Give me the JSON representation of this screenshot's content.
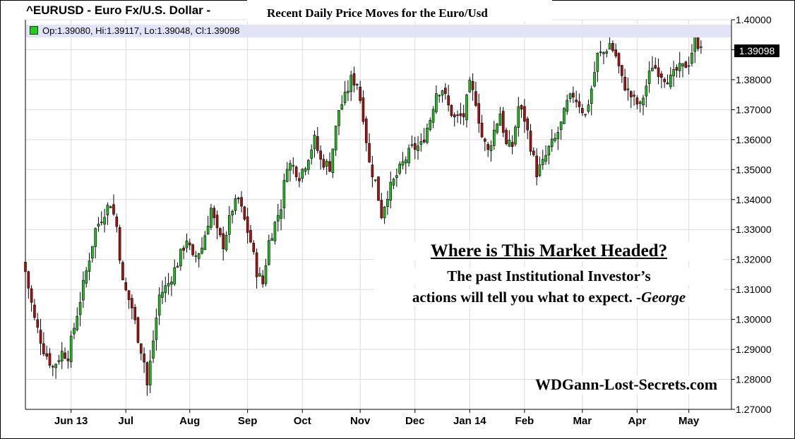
{
  "header": {
    "symbol_title": "^EURUSD - Euro Fx/U.S. Dollar -",
    "chart_title": "Recent Daily Price Moves for the Euro/Usd"
  },
  "ohlc_readout": "Op:1.39080, Hi:1.39117, Lo:1.39048, Cl:1.39098",
  "last_price": "1.39098",
  "annotation": {
    "headline": "Where is This Market Headed?",
    "line1": "The past Institutional Investor’s",
    "line2_main": "actions will tell you what to expect. ",
    "line2_sign": "-George"
  },
  "watermark": "WDGann-Lost-Secrets.com",
  "colors": {
    "up": "#22bb22",
    "down": "#aa1111",
    "grid": "#dcdcdc",
    "ohlc_band": "#e3e3f7"
  },
  "chart_data": {
    "type": "candlestick",
    "title": "Recent Daily Price Moves for the Euro/Usd",
    "ylim": [
      1.27,
      1.4
    ],
    "yticks": [
      "1.27000",
      "1.28000",
      "1.29000",
      "1.30000",
      "1.31000",
      "1.32000",
      "1.33000",
      "1.34000",
      "1.35000",
      "1.36000",
      "1.37000",
      "1.38000",
      "1.39000",
      "1.40000"
    ],
    "xlim_trading_days": [
      0,
      232
    ],
    "x_ticks": [
      {
        "label": "Jun 13",
        "day": 15
      },
      {
        "label": "Jul",
        "day": 33
      },
      {
        "label": "Aug",
        "day": 54
      },
      {
        "label": "Sep",
        "day": 73
      },
      {
        "label": "Oct",
        "day": 91
      },
      {
        "label": "Nov",
        "day": 110
      },
      {
        "label": "Dec",
        "day": 128
      },
      {
        "label": "Jan 14",
        "day": 146
      },
      {
        "label": "Feb",
        "day": 164
      },
      {
        "label": "Mar",
        "day": 183
      },
      {
        "label": "Apr",
        "day": 201
      },
      {
        "label": "May",
        "day": 218
      }
    ],
    "grid": true,
    "close_path": [
      [
        0,
        1.316
      ],
      [
        3,
        1.3
      ],
      [
        6,
        1.29
      ],
      [
        9,
        1.284
      ],
      [
        12,
        1.289
      ],
      [
        14,
        1.288
      ],
      [
        17,
        1.302
      ],
      [
        20,
        1.316
      ],
      [
        23,
        1.33
      ],
      [
        26,
        1.336
      ],
      [
        28,
        1.339
      ],
      [
        30,
        1.331
      ],
      [
        32,
        1.312
      ],
      [
        35,
        1.304
      ],
      [
        37,
        1.294
      ],
      [
        39,
        1.286
      ],
      [
        40,
        1.278
      ],
      [
        42,
        1.293
      ],
      [
        44,
        1.308
      ],
      [
        47,
        1.312
      ],
      [
        50,
        1.319
      ],
      [
        53,
        1.327
      ],
      [
        55,
        1.32
      ],
      [
        58,
        1.324
      ],
      [
        61,
        1.337
      ],
      [
        63,
        1.329
      ],
      [
        65,
        1.325
      ],
      [
        68,
        1.337
      ],
      [
        70,
        1.34
      ],
      [
        72,
        1.333
      ],
      [
        74,
        1.326
      ],
      [
        76,
        1.316
      ],
      [
        78,
        1.312
      ],
      [
        80,
        1.326
      ],
      [
        82,
        1.332
      ],
      [
        84,
        1.338
      ],
      [
        86,
        1.352
      ],
      [
        88,
        1.351
      ],
      [
        90,
        1.348
      ],
      [
        92,
        1.352
      ],
      [
        95,
        1.36
      ],
      [
        97,
        1.353
      ],
      [
        100,
        1.351
      ],
      [
        103,
        1.37
      ],
      [
        105,
        1.374
      ],
      [
        107,
        1.38
      ],
      [
        109,
        1.379
      ],
      [
        111,
        1.368
      ],
      [
        113,
        1.352
      ],
      [
        115,
        1.346
      ],
      [
        117,
        1.335
      ],
      [
        119,
        1.342
      ],
      [
        122,
        1.348
      ],
      [
        124,
        1.352
      ],
      [
        127,
        1.357
      ],
      [
        130,
        1.358
      ],
      [
        133,
        1.367
      ],
      [
        135,
        1.376
      ],
      [
        137,
        1.377
      ],
      [
        139,
        1.371
      ],
      [
        141,
        1.367
      ],
      [
        144,
        1.368
      ],
      [
        146,
        1.378
      ],
      [
        148,
        1.373
      ],
      [
        150,
        1.361
      ],
      [
        152,
        1.356
      ],
      [
        154,
        1.363
      ],
      [
        156,
        1.369
      ],
      [
        158,
        1.358
      ],
      [
        160,
        1.358
      ],
      [
        162,
        1.371
      ],
      [
        164,
        1.367
      ],
      [
        166,
        1.358
      ],
      [
        168,
        1.349
      ],
      [
        170,
        1.352
      ],
      [
        172,
        1.357
      ],
      [
        174,
        1.36
      ],
      [
        176,
        1.365
      ],
      [
        178,
        1.372
      ],
      [
        180,
        1.375
      ],
      [
        182,
        1.372
      ],
      [
        184,
        1.368
      ],
      [
        186,
        1.377
      ],
      [
        188,
        1.388
      ],
      [
        190,
        1.389
      ],
      [
        192,
        1.392
      ],
      [
        194,
        1.388
      ],
      [
        196,
        1.38
      ],
      [
        198,
        1.376
      ],
      [
        200,
        1.373
      ],
      [
        202,
        1.371
      ],
      [
        204,
        1.378
      ],
      [
        206,
        1.385
      ],
      [
        208,
        1.383
      ],
      [
        210,
        1.381
      ],
      [
        212,
        1.38
      ],
      [
        214,
        1.383
      ],
      [
        216,
        1.384
      ],
      [
        218,
        1.386
      ],
      [
        220,
        1.393
      ],
      [
        222,
        1.391
      ]
    ],
    "last": {
      "open": 1.3908,
      "high": 1.39117,
      "low": 1.39048,
      "close": 1.39098
    }
  }
}
